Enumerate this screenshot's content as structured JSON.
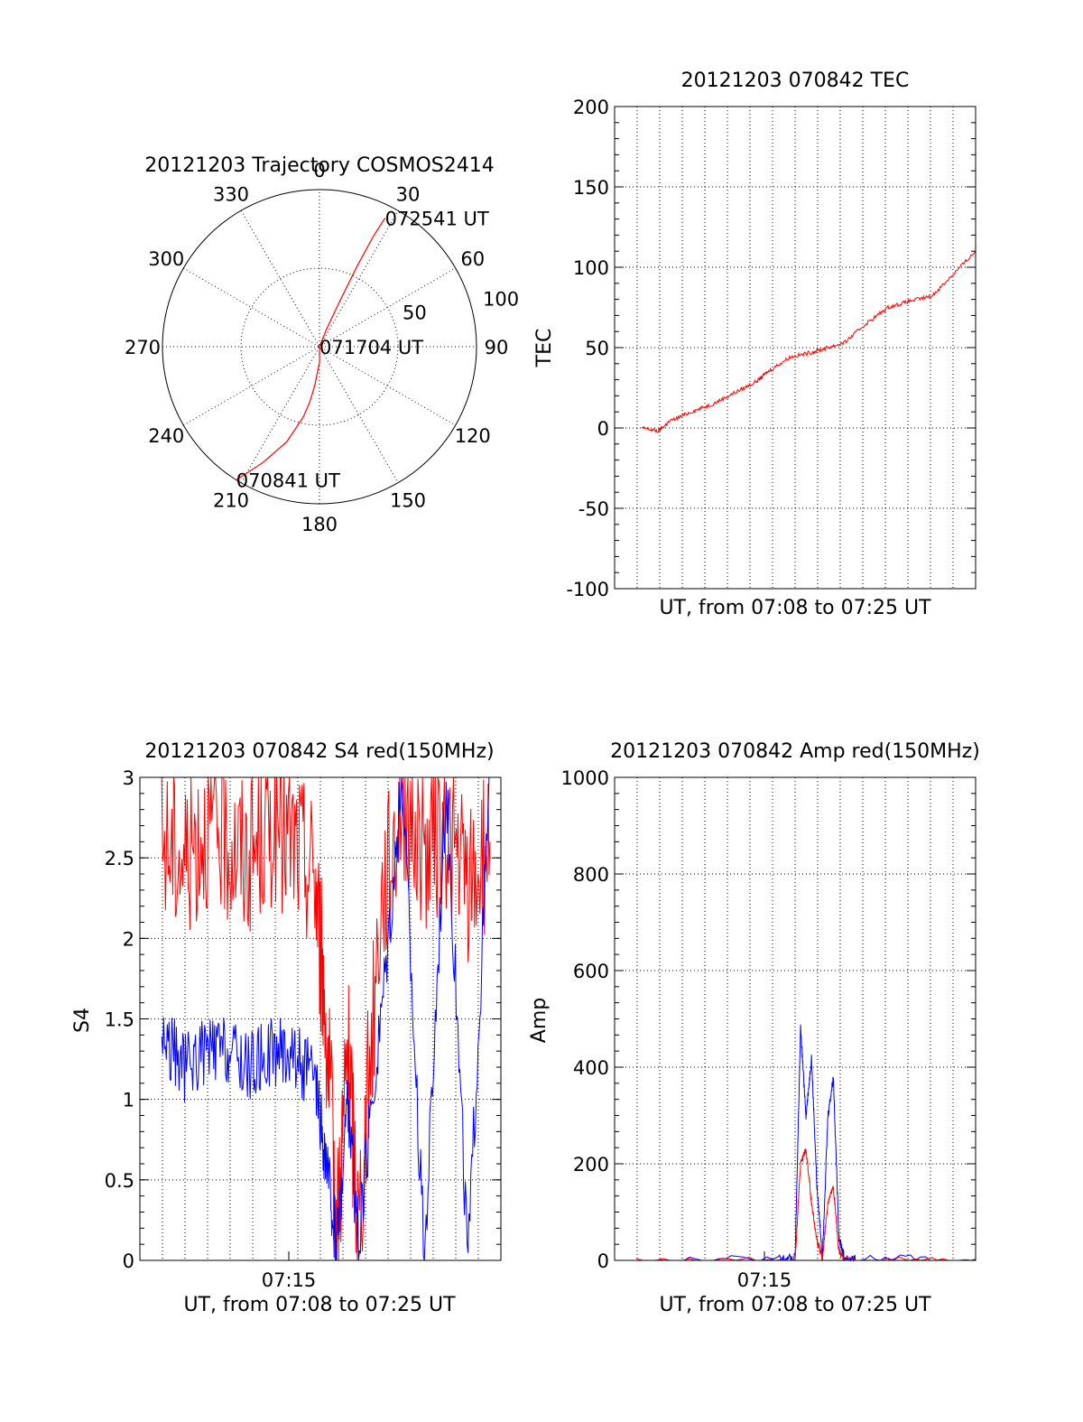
{
  "colors": {
    "red_series": "#ff0000",
    "blue_series": "#0000ff",
    "axes": "#000000",
    "background": "#ffffff"
  },
  "chart_data": [
    {
      "id": "trajectory",
      "type": "scatter",
      "subtype": "polar",
      "title": "20121203 Trajectory COSMOS2414",
      "angle_ticks": [
        "0",
        "30",
        "60",
        "90",
        "120",
        "150",
        "180",
        "210",
        "240",
        "270",
        "300",
        "330"
      ],
      "angle_values": [
        0,
        30,
        60,
        90,
        120,
        150,
        180,
        210,
        240,
        270,
        300,
        330
      ],
      "radial_ticks": [
        "50",
        "100"
      ],
      "radial_values": [
        50,
        100
      ],
      "radial_max": 100,
      "grid": true,
      "series": [
        {
          "color": "#ff0000",
          "azimuth": [
            212,
            206,
            199,
            193,
            190,
            187,
            180,
            90,
            22,
            24,
            25,
            26,
            27
          ],
          "radius": [
            100,
            82,
            64,
            46,
            36,
            25,
            10,
            0,
            12,
            30,
            55,
            78,
            92
          ]
        }
      ],
      "annotations": [
        {
          "text": "072541 UT",
          "azimuth": 27,
          "radius": 92
        },
        {
          "text": "071704 UT",
          "azimuth": 90,
          "radius": 0
        },
        {
          "text": "070841 UT",
          "azimuth": 212,
          "radius": 100
        }
      ]
    },
    {
      "id": "tec",
      "type": "line",
      "title": "20121203 070842 TEC",
      "xlabel": "UT, from 07:08 to 07:25 UT",
      "ylabel": "TEC",
      "xlim": [
        7.12,
        7.45
      ],
      "ylim": [
        -100,
        200
      ],
      "yticks": [
        "200",
        "150",
        "100",
        "50",
        "0",
        "-50",
        "-100"
      ],
      "ytick_values": [
        200,
        150,
        100,
        50,
        0,
        -50,
        -100
      ],
      "grid": true,
      "series": [
        {
          "color": "#ff0000",
          "x": [
            7.145,
            7.16,
            7.17,
            7.19,
            7.21,
            7.23,
            7.25,
            7.26,
            7.28,
            7.3,
            7.315,
            7.33,
            7.35,
            7.37,
            7.39,
            7.41,
            7.43,
            7.45
          ],
          "y": [
            0,
            -2,
            4,
            10,
            15,
            22,
            29,
            35,
            44,
            47,
            50,
            53,
            65,
            75,
            79,
            82,
            96,
            110
          ]
        }
      ]
    },
    {
      "id": "s4",
      "type": "line",
      "title": "20121203 070842 S4 red(150MHz)",
      "xlabel": "UT, from 07:08 to 07:25 UT",
      "ylabel": "S4",
      "xtick_labels": [
        "07:15"
      ],
      "xlim": [
        7.12,
        7.45
      ],
      "ylim": [
        0,
        3
      ],
      "yticks": [
        "3",
        "2.5",
        "2",
        "1.5",
        "1",
        "0.5",
        "0"
      ],
      "ytick_values": [
        3,
        2.5,
        2,
        1.5,
        1,
        0.5,
        0
      ],
      "grid": true,
      "series": [
        {
          "color": "#ff0000",
          "x": [
            7.14,
            7.16,
            7.18,
            7.2,
            7.22,
            7.24,
            7.26,
            7.28,
            7.29,
            7.3,
            7.31,
            7.32,
            7.34,
            7.36,
            7.38,
            7.4,
            7.42,
            7.44
          ],
          "y": [
            2.6,
            2.5,
            2.7,
            2.6,
            2.5,
            2.7,
            2.6,
            2.4,
            1.5,
            0.2,
            1.3,
            0.2,
            2.2,
            2.9,
            2.5,
            2.7,
            2.3,
            2.6
          ]
        },
        {
          "color": "#0000ff",
          "x": [
            7.14,
            7.16,
            7.18,
            7.2,
            7.22,
            7.24,
            7.26,
            7.28,
            7.29,
            7.3,
            7.31,
            7.32,
            7.34,
            7.36,
            7.38,
            7.4,
            7.42,
            7.44
          ],
          "y": [
            1.4,
            1.2,
            1.3,
            1.3,
            1.2,
            1.3,
            1.3,
            1.1,
            0.6,
            0.1,
            1.0,
            0.1,
            1.5,
            3.0,
            0.0,
            3.0,
            0.0,
            3.0
          ]
        }
      ]
    },
    {
      "id": "amp",
      "type": "line",
      "title": "20121203 070842 Amp red(150MHz)",
      "xlabel": "UT, from 07:08 to 07:25 UT",
      "ylabel": "Amp",
      "xtick_labels": [
        "07:15"
      ],
      "xlim": [
        7.12,
        7.45
      ],
      "ylim": [
        0,
        1000
      ],
      "yticks": [
        "1000",
        "800",
        "600",
        "400",
        "200",
        "0"
      ],
      "ytick_values": [
        1000,
        800,
        600,
        400,
        200,
        0
      ],
      "grid": true,
      "series": [
        {
          "color": "#0000ff",
          "x": [
            7.14,
            7.27,
            7.285,
            7.29,
            7.295,
            7.3,
            7.305,
            7.31,
            7.315,
            7.32,
            7.325,
            7.33,
            7.34,
            7.45
          ],
          "y": [
            2,
            2,
            5,
            480,
            300,
            420,
            150,
            10,
            300,
            380,
            50,
            5,
            2,
            2
          ]
        },
        {
          "color": "#ff0000",
          "x": [
            7.14,
            7.285,
            7.29,
            7.295,
            7.3,
            7.305,
            7.31,
            7.315,
            7.32,
            7.325,
            7.33,
            7.45
          ],
          "y": [
            0,
            0,
            200,
            230,
            120,
            40,
            5,
            120,
            150,
            20,
            0,
            0
          ]
        }
      ]
    }
  ]
}
